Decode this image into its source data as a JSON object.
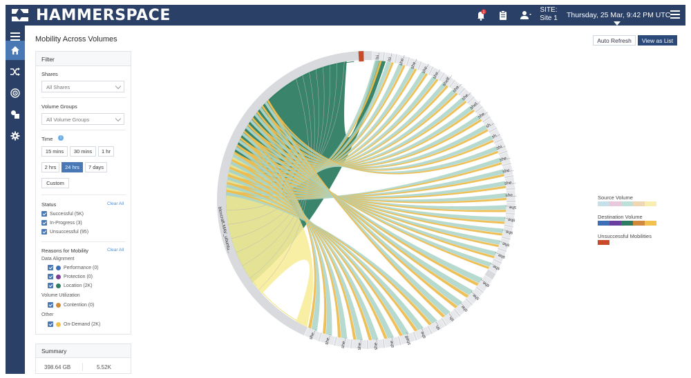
{
  "header": {
    "brand": "HAMMERSPACE",
    "notification_count": "1",
    "site_label": "SITE:",
    "site_value": "Site 1",
    "datetime": "Thursday, 25 Mar, 9:42 PM UTC"
  },
  "sidebar": {
    "items": [
      {
        "name": "menu-icon"
      },
      {
        "name": "home-icon"
      },
      {
        "name": "shuffle-icon"
      },
      {
        "name": "target-icon"
      },
      {
        "name": "shapes-icon"
      },
      {
        "name": "gear-icon"
      }
    ]
  },
  "page": {
    "title": "Mobility Across Volumes",
    "auto_refresh": "Auto Refresh",
    "view_as_list": "View as List"
  },
  "filter": {
    "title": "Filter",
    "shares_label": "Shares",
    "shares_value": "All Shares",
    "volume_groups_label": "Volume Groups",
    "volume_groups_value": "All Volume Groups",
    "time_label": "Time",
    "time_options": [
      "15 mins",
      "30 mins",
      "1 hr",
      "2 hrs",
      "24 hrs",
      "7 days",
      "Custom"
    ],
    "time_selected": "24 hrs",
    "status_label": "Status",
    "clear_all": "Clear All",
    "status_items": [
      "Successful (5K)",
      "In-Progress (3)",
      "Unsuccessful (95)"
    ],
    "reasons_label": "Reasons for Mobility",
    "groups": {
      "data_alignment": "Data Alignment",
      "volume_utilization": "Volume Utilization",
      "other": "Other"
    },
    "reasons": [
      {
        "label": "Performance (0)",
        "color": "#3d6fb6"
      },
      {
        "label": "Protection (0)",
        "color": "#7b3a96"
      },
      {
        "label": "Location (2K)",
        "color": "#2e7d62"
      },
      {
        "label": "Contention (0)",
        "color": "#d08a3c"
      },
      {
        "label": "On-Demand (2K)",
        "color": "#f2c14e"
      }
    ]
  },
  "summary": {
    "title": "Summary",
    "size": "398.64 GB",
    "count": "5.52K"
  },
  "legend": {
    "source_title": "Source Volume",
    "source_colors": [
      "#c6e0ea",
      "#e8c9dc",
      "#bfe0d6",
      "#eed8b4",
      "#f9eeb1"
    ],
    "destination_title": "Destination Volume",
    "destination_colors": [
      "#3d6fb6",
      "#6a3fa0",
      "#2e7d62",
      "#d08a3c",
      "#f2c14e"
    ],
    "unsuccessful_title": "Unsuccessful Mobilities",
    "unsuccessful_color": "#c94a2b"
  },
  "chord": {
    "colors": {
      "ring": "#d8dadd",
      "green_arc": "#2e7d62",
      "yellow_arc": "#f7ec9a",
      "ribbon_teal": "#a9d3c7",
      "ribbon_gold": "#eebd4f",
      "red": "#c94a2b"
    },
    "labels_right": [
      "lsi..",
      "lsi...",
      "she...",
      "she...",
      "she...",
      "she...",
      "shelf...",
      "she...",
      "she...",
      "shel...",
      "she...",
      "sh...",
      "sh...",
      "shi...",
      "she...",
      "she...",
      "she...",
      "she...",
      "she...",
      "she...",
      "she...",
      "she...",
      "she...",
      "she..."
    ],
    "labels_bottom": [
      "she...",
      "she...",
      "she...",
      "sh...",
      "sh...",
      "she...",
      "shelf...",
      "she...",
      "she...",
      "she...",
      "she...",
      "she...",
      "she..."
    ],
    "label_left": "bloxcraft.MAV_ubuntu..."
  }
}
